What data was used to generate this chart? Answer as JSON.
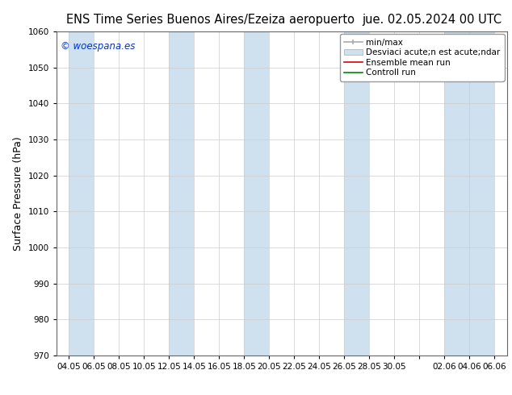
{
  "title_left": "ENS Time Series Buenos Aires/Ezeiza aeropuerto",
  "title_right": "jue. 02.05.2024 00 UTC",
  "ylabel": "Surface Pressure (hPa)",
  "ylim": [
    970,
    1060
  ],
  "yticks": [
    970,
    980,
    990,
    1000,
    1010,
    1020,
    1030,
    1040,
    1050,
    1060
  ],
  "xtick_labels": [
    "04.05",
    "06.05",
    "08.05",
    "10.05",
    "12.05",
    "14.05",
    "16.05",
    "18.05",
    "20.05",
    "22.05",
    "24.05",
    "26.05",
    "28.05",
    "30.05",
    "",
    "02.06",
    "04.06",
    "06.06"
  ],
  "watermark": "© woespana.es",
  "watermark_color": "#0033cc",
  "bg_color": "#ffffff",
  "plot_bg_color": "#ffffff",
  "band_color": "#cfe0ef",
  "legend_label_minmax": "min/max",
  "legend_label_std": "Desviaci acute;n est acute;ndar",
  "legend_label_ens": "Ensemble mean run",
  "legend_label_ctrl": "Controll run",
  "title_fontsize": 10.5,
  "ylabel_fontsize": 9,
  "tick_fontsize": 7.5,
  "legend_fontsize": 7.5
}
